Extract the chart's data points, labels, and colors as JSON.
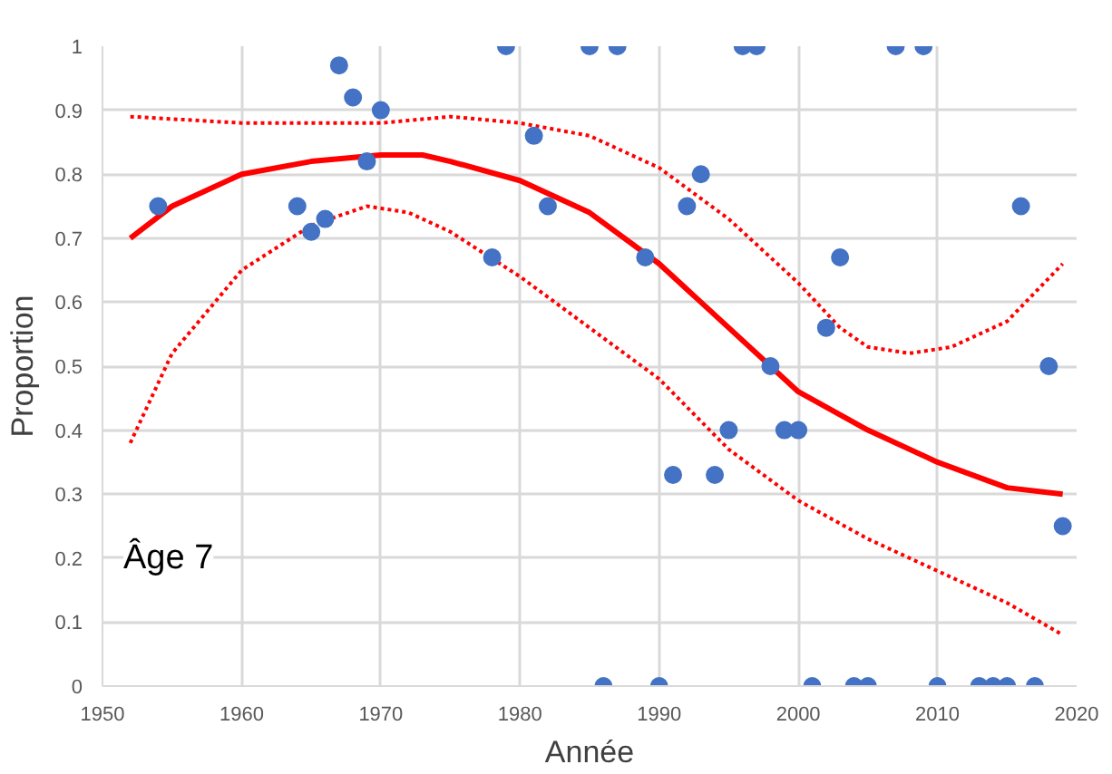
{
  "chart_data": {
    "type": "scatter",
    "xlabel": "Année",
    "ylabel": "Proportion",
    "annotations": [
      "Âge 7"
    ],
    "xlim": [
      1950,
      2020
    ],
    "xticks": [
      1950,
      1960,
      1970,
      1980,
      1990,
      2000,
      2010,
      2020
    ],
    "ylim": [
      0,
      1
    ],
    "yticks": [
      0,
      {
        "value": 0.1,
        "label": "0.1"
      },
      {
        "value": 0.2,
        "label": "0.2"
      },
      {
        "value": 0.3,
        "label": "0.3"
      },
      {
        "value": 0.4,
        "label": "0.4"
      },
      {
        "value": 0.5,
        "label": "0.5"
      },
      {
        "value": 0.6,
        "label": "0.6"
      },
      {
        "value": 0.7,
        "label": "0.7"
      },
      {
        "value": 0.8,
        "label": "0.8"
      },
      {
        "value": 0.9,
        "label": "0.9"
      },
      1
    ],
    "grid": true,
    "series": [
      {
        "marker": "circle",
        "color": "#4472c4",
        "x": [
          1954,
          1964,
          1965,
          1966,
          1967,
          1968,
          1969,
          1970,
          1978,
          1979,
          1981,
          1982,
          1985,
          1987,
          1989,
          1991,
          1992,
          1993,
          1994,
          1995,
          1996,
          1997,
          1998,
          1999,
          2000,
          2002,
          2003,
          2007,
          2009,
          2016,
          2018,
          2019,
          1986,
          1990,
          2001,
          2004,
          2005,
          2010,
          2013,
          2014,
          2015,
          2017
        ],
        "values": [
          0.75,
          0.75,
          0.71,
          0.73,
          0.97,
          0.92,
          0.82,
          0.9,
          0.67,
          1,
          0.86,
          0.75,
          1,
          1,
          0.67,
          0.33,
          0.75,
          0.8,
          0.33,
          0.4,
          1,
          1,
          0.5,
          0.4,
          0.4,
          0.56,
          0.67,
          1,
          1,
          0.75,
          0.5,
          0.25,
          0,
          0,
          0,
          0,
          0,
          0,
          0,
          0,
          0,
          0
        ]
      },
      {
        "type": "line",
        "color": "#ff0000",
        "line_style": "solid",
        "x": [
          1952,
          1955,
          1960,
          1965,
          1970,
          1973,
          1975,
          1980,
          1985,
          1990,
          1995,
          2000,
          2005,
          2010,
          2015,
          2019
        ],
        "values": [
          0.7,
          0.75,
          0.8,
          0.82,
          0.83,
          0.83,
          0.82,
          0.79,
          0.74,
          0.66,
          0.56,
          0.46,
          0.4,
          0.35,
          0.31,
          0.3
        ]
      },
      {
        "type": "line",
        "color": "#ff0000",
        "line_style": "dotted",
        "x": [
          1952,
          1960,
          1965,
          1970,
          1975,
          1980,
          1985,
          1990,
          1995,
          2000,
          2003,
          2005,
          2008,
          2011,
          2015,
          2019
        ],
        "values": [
          0.89,
          0.88,
          0.88,
          0.88,
          0.89,
          0.88,
          0.86,
          0.81,
          0.73,
          0.63,
          0.56,
          0.53,
          0.52,
          0.53,
          0.57,
          0.66
        ]
      },
      {
        "type": "line",
        "color": "#ff0000",
        "line_style": "dotted",
        "x": [
          1952,
          1955,
          1960,
          1965,
          1969,
          1972,
          1975,
          1980,
          1985,
          1990,
          1995,
          2000,
          2005,
          2010,
          2015,
          2019
        ],
        "values": [
          0.38,
          0.52,
          0.65,
          0.72,
          0.75,
          0.74,
          0.71,
          0.64,
          0.56,
          0.48,
          0.37,
          0.29,
          0.23,
          0.18,
          0.13,
          0.08
        ]
      }
    ]
  }
}
